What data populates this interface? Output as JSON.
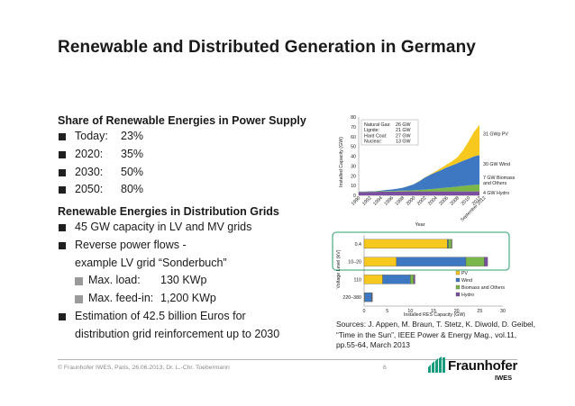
{
  "slide": {
    "title": "Renewable and Distributed Generation in Germany"
  },
  "share": {
    "heading": "Share of Renewable Energies in Power Supply",
    "items": [
      {
        "label": "Today:",
        "value": "23%"
      },
      {
        "label": "2020:",
        "value": "35%"
      },
      {
        "label": "2030:",
        "value": "50%"
      },
      {
        "label": "2050:",
        "value": "80%"
      }
    ]
  },
  "distribution": {
    "heading": "Renewable Energies in Distribution Grids",
    "capacity": "45 GW capacity in LV and MV grids",
    "reverse_line1": "Reverse power flows -",
    "reverse_line2": "example LV grid “Sonderbuch”",
    "max_load_label": "Max. load:",
    "max_load_value": "130 KWp",
    "max_feedin_label": "Max. feed-in:",
    "max_feedin_value": "1,200 KWp",
    "estimation_line1": "Estimation of 42.5 billion Euros for",
    "estimation_line2": "distribution grid reinforcement up to 2030"
  },
  "sources": {
    "line1": "Sources: J. Appen, M. Braun, T. Stetz, K. Diwold, D. Geibel,",
    "line2": "“Time in the Sun”, IEEE Power & Energy Mag., vol.11,",
    "line3": "pp.55-64, March 2013"
  },
  "footer": {
    "text": "© Fraunhofer IWES, Paris, 26.06.2013,  Dr. L.-Chr. Toebermann",
    "page": "6"
  },
  "logo": {
    "name": "Fraunhofer",
    "sub": "IWES",
    "icon": "fraunhofer-stripes-icon"
  },
  "colors": {
    "pv": "#f7c81e",
    "wind": "#3f78c2",
    "biomass": "#7ab648",
    "hydro": "#7a4fa0",
    "highlight": "#57b18a"
  },
  "chart_data": [
    {
      "type": "area",
      "ylabel": "Installed Capacity (GW)",
      "xlabel": "Year",
      "ylim": [
        0,
        80
      ],
      "yticks": [
        0,
        10,
        20,
        30,
        40,
        50,
        60,
        70,
        80
      ],
      "xticks": [
        "1990",
        "1992",
        "1994",
        "1996",
        "1998",
        "2000",
        "2002",
        "2004",
        "2006",
        "2008",
        "2010",
        "2012",
        "September 2012"
      ],
      "x": [
        1990,
        1991,
        1992,
        1993,
        1994,
        1995,
        1996,
        1997,
        1998,
        1999,
        2000,
        2001,
        2002,
        2003,
        2004,
        2005,
        2006,
        2007,
        2008,
        2009,
        2010,
        2011,
        2012
      ],
      "series": [
        {
          "name": "Hydro",
          "values": [
            3.5,
            3.5,
            3.6,
            3.6,
            3.7,
            3.8,
            3.8,
            3.9,
            3.9,
            4.0,
            4.0,
            4.0,
            4.0,
            4.0,
            4.0,
            4.0,
            4.0,
            4.0,
            4.0,
            4.0,
            4.0,
            4.0,
            4.0
          ]
        },
        {
          "name": "Biomass and Others",
          "values": [
            0.3,
            0.3,
            0.4,
            0.4,
            0.5,
            0.6,
            0.7,
            0.8,
            0.9,
            1.0,
            1.2,
            1.5,
            1.9,
            2.3,
            2.8,
            3.3,
            3.9,
            4.4,
            5.0,
            5.6,
            6.2,
            6.7,
            7.0
          ]
        },
        {
          "name": "Wind",
          "values": [
            0.1,
            0.1,
            0.2,
            0.3,
            0.6,
            1.1,
            1.5,
            2.1,
            2.9,
            4.4,
            6.1,
            8.8,
            12.0,
            14.6,
            16.6,
            18.4,
            20.6,
            22.2,
            23.9,
            25.7,
            27.2,
            29.1,
            30.0
          ]
        },
        {
          "name": "PV",
          "values": [
            0,
            0,
            0,
            0,
            0,
            0,
            0,
            0,
            0,
            0.1,
            0.1,
            0.2,
            0.3,
            0.4,
            1.1,
            2.1,
            2.9,
            4.2,
            6.1,
            10.6,
            17.6,
            25.0,
            31.0
          ]
        }
      ],
      "labels": [
        {
          "text": "31 GWp PV"
        },
        {
          "text": "30 GW Wind"
        },
        {
          "text": "7 GW Biomass"
        },
        {
          "text": "and Others"
        },
        {
          "text": "4 GW Hydro"
        }
      ],
      "annotation_box": [
        {
          "label": "Natural Gas:",
          "value": "26 GW"
        },
        {
          "label": "Lignite:",
          "value": "21 GW"
        },
        {
          "label": "Hard Coal:",
          "value": "27 GW"
        },
        {
          "label": "Nuclear:",
          "value": "13 GW"
        }
      ]
    },
    {
      "type": "bar",
      "orientation": "horizontal",
      "ylabel": "Voltage Level (kV)",
      "xlabel": "Installed RES Capacity (GW)",
      "xlim": [
        0,
        30
      ],
      "xticks": [
        0,
        5,
        10,
        15,
        20,
        25,
        30
      ],
      "categories": [
        "0.4",
        "10–20",
        "110",
        "220–380"
      ],
      "series": [
        {
          "name": "PV",
          "values": [
            18.0,
            7.0,
            4.0,
            0.1
          ]
        },
        {
          "name": "Wind",
          "values": [
            0.2,
            15.0,
            6.0,
            1.5
          ]
        },
        {
          "name": "Biomass and Others",
          "values": [
            0.7,
            4.0,
            0.7,
            0.1
          ]
        },
        {
          "name": "Hydro",
          "values": [
            0.1,
            0.7,
            0.3,
            0.1
          ]
        }
      ],
      "legend": "right"
    }
  ]
}
